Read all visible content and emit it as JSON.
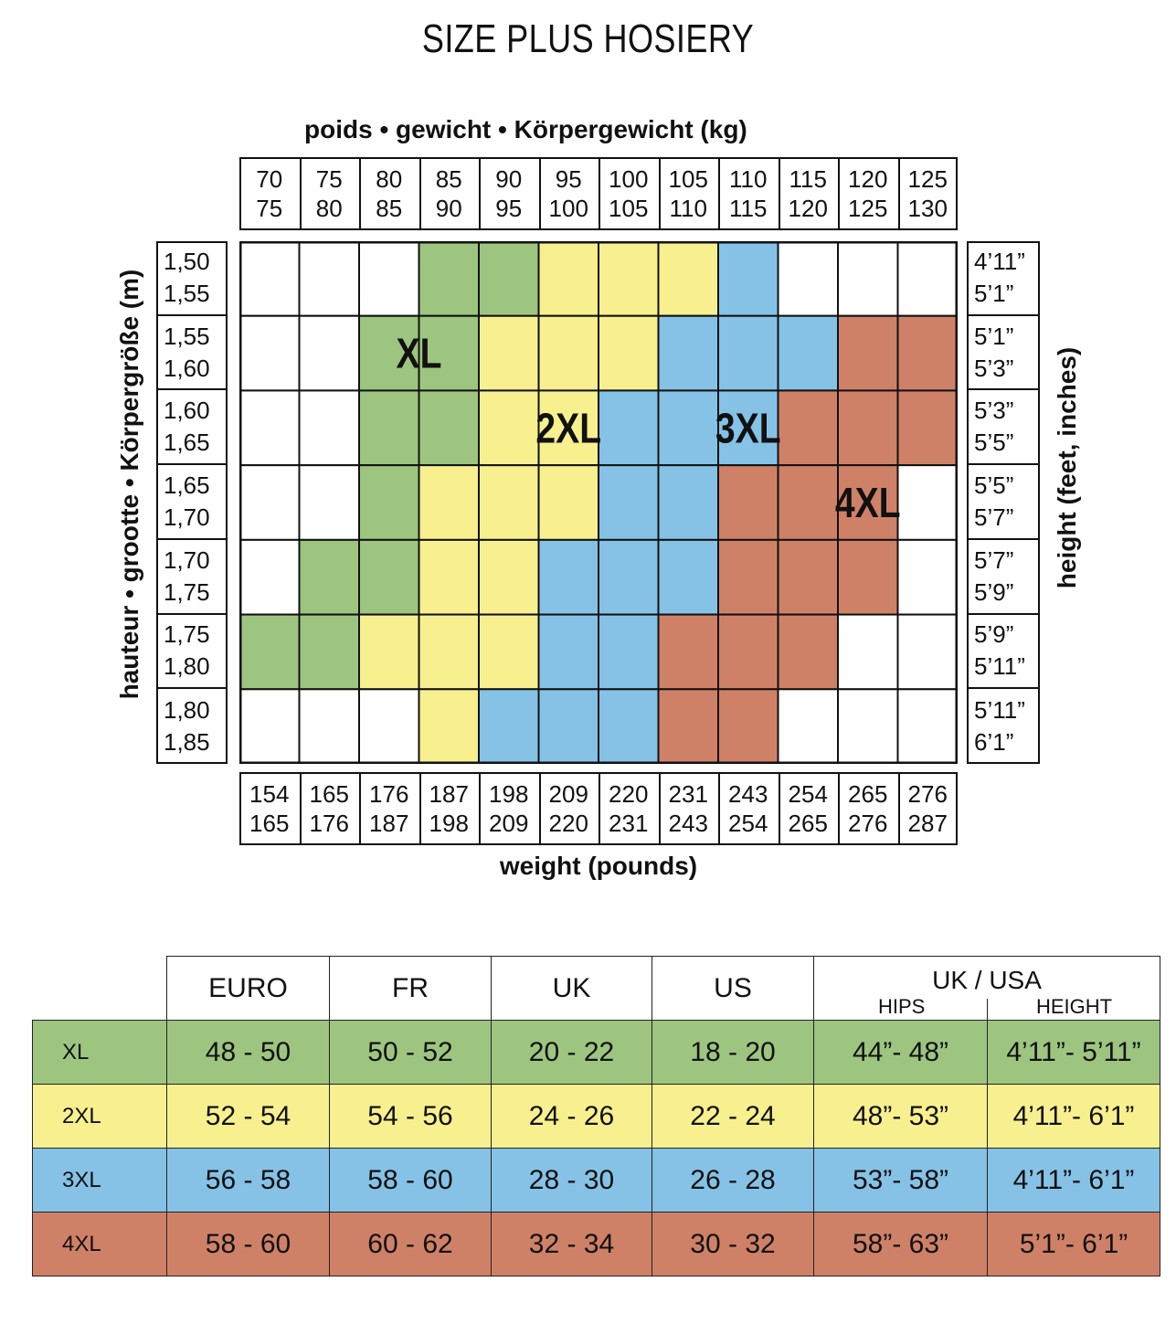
{
  "title": "SIZE PLUS HOSIERY",
  "axes": {
    "kg_label": "poids • gewicht • Körpergewicht   (kg)",
    "lb_label": "weight (pounds)",
    "m_label": "hauteur • grootte • Körpergröße   (m)",
    "in_label": "height (feet, inches)"
  },
  "colors": {
    "XL": "#9dc580",
    "2XL": "#f8f08f",
    "3XL": "#86c2e6",
    "4XL": "#cf8168",
    "empty": "#ffffff"
  },
  "chart_data": {
    "type": "heatmap",
    "title": "SIZE PLUS HOSIERY",
    "x_kg": [
      [
        "70",
        "75"
      ],
      [
        "75",
        "80"
      ],
      [
        "80",
        "85"
      ],
      [
        "85",
        "90"
      ],
      [
        "90",
        "95"
      ],
      [
        "95",
        "100"
      ],
      [
        "100",
        "105"
      ],
      [
        "105",
        "110"
      ],
      [
        "110",
        "115"
      ],
      [
        "115",
        "120"
      ],
      [
        "120",
        "125"
      ],
      [
        "125",
        "130"
      ]
    ],
    "x_lb": [
      [
        "154",
        "165"
      ],
      [
        "165",
        "176"
      ],
      [
        "176",
        "187"
      ],
      [
        "187",
        "198"
      ],
      [
        "198",
        "209"
      ],
      [
        "209",
        "220"
      ],
      [
        "220",
        "231"
      ],
      [
        "231",
        "243"
      ],
      [
        "243",
        "254"
      ],
      [
        "254",
        "265"
      ],
      [
        "265",
        "276"
      ],
      [
        "276",
        "287"
      ]
    ],
    "y_m": [
      [
        "1,50",
        "1,55"
      ],
      [
        "1,55",
        "1,60"
      ],
      [
        "1,60",
        "1,65"
      ],
      [
        "1,65",
        "1,70"
      ],
      [
        "1,70",
        "1,75"
      ],
      [
        "1,75",
        "1,80"
      ],
      [
        "1,80",
        "1,85"
      ]
    ],
    "y_in": [
      [
        "4’11”",
        "5’1”"
      ],
      [
        "5’1”",
        "5’3”"
      ],
      [
        "5’3”",
        "5’5”"
      ],
      [
        "5’5”",
        "5’7”"
      ],
      [
        "5’7”",
        "5’9”"
      ],
      [
        "5’9”",
        "5’11”"
      ],
      [
        "5’11”",
        "6’1”"
      ]
    ],
    "cells": [
      [
        "",
        "",
        "",
        "XL",
        "XL",
        "2XL",
        "2XL",
        "2XL",
        "3XL",
        "",
        "",
        ""
      ],
      [
        "",
        "",
        "XL",
        "XL",
        "2XL",
        "2XL",
        "2XL",
        "3XL",
        "3XL",
        "3XL",
        "4XL",
        "4XL"
      ],
      [
        "",
        "",
        "XL",
        "XL",
        "2XL",
        "2XL",
        "3XL",
        "3XL",
        "3XL",
        "4XL",
        "4XL",
        "4XL"
      ],
      [
        "",
        "",
        "XL",
        "2XL",
        "2XL",
        "2XL",
        "3XL",
        "3XL",
        "4XL",
        "4XL",
        "4XL",
        ""
      ],
      [
        "",
        "XL",
        "XL",
        "2XL",
        "2XL",
        "3XL",
        "3XL",
        "3XL",
        "4XL",
        "4XL",
        "4XL",
        ""
      ],
      [
        "XL",
        "XL",
        "2XL",
        "2XL",
        "2XL",
        "3XL",
        "3XL",
        "4XL",
        "4XL",
        "4XL",
        "",
        ""
      ],
      [
        "",
        "",
        "",
        "2XL",
        "3XL",
        "3XL",
        "3XL",
        "4XL",
        "4XL",
        "",
        "",
        ""
      ]
    ],
    "region_labels": [
      {
        "text": "XL",
        "row": 1,
        "col": 2.5
      },
      {
        "text": "2XL",
        "row": 2,
        "col": 5
      },
      {
        "text": "3XL",
        "row": 2,
        "col": 8
      },
      {
        "text": "4XL",
        "row": 3,
        "col": 10
      }
    ]
  },
  "table": {
    "headers": [
      "EURO",
      "FR",
      "UK",
      "US"
    ],
    "ukusa": {
      "top": "UK / USA",
      "hips": "HIPS",
      "height": "HEIGHT"
    },
    "rows": [
      {
        "size": "XL",
        "euro": "48 - 50",
        "fr": "50 - 52",
        "uk": "20 - 22",
        "us": "18 - 20",
        "hips": "44”- 48”",
        "height": "4’11”- 5’11”"
      },
      {
        "size": "2XL",
        "euro": "52 - 54",
        "fr": "54 - 56",
        "uk": "24 - 26",
        "us": "22 - 24",
        "hips": "48”- 53”",
        "height": "4’11”- 6’1”"
      },
      {
        "size": "3XL",
        "euro": "56 - 58",
        "fr": "58 - 60",
        "uk": "28 - 30",
        "us": "26 - 28",
        "hips": "53”- 58”",
        "height": "4’11”- 6’1”"
      },
      {
        "size": "4XL",
        "euro": "58 - 60",
        "fr": "60 - 62",
        "uk": "32 - 34",
        "us": "30 - 32",
        "hips": "58”- 63”",
        "height": "5’1”- 6’1”"
      }
    ]
  }
}
